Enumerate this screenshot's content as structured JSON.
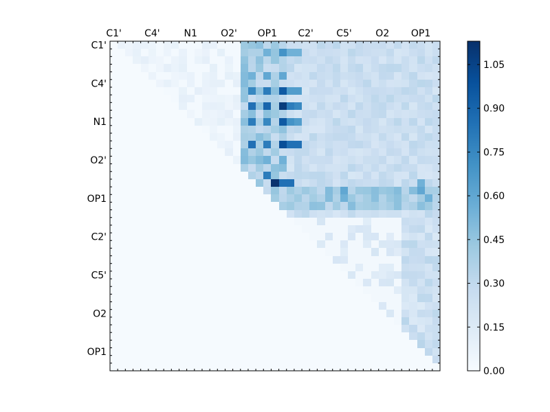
{
  "chart_data": {
    "type": "heatmap",
    "title": "",
    "x_tick_labels": [
      "C1'",
      "C4'",
      "N1",
      "O2'",
      "OP1",
      "C2'",
      "C5'",
      "O2",
      "OP1"
    ],
    "y_tick_labels": [
      "C1'",
      "C4'",
      "N1",
      "O2'",
      "OP1",
      "C2'",
      "C5'",
      "O2",
      "OP1"
    ],
    "n_cells": 43,
    "colormap": "Blues",
    "colorbar": {
      "range": [
        0.0,
        1.13
      ],
      "ticks": [
        0.0,
        0.15,
        0.3,
        0.45,
        0.6,
        0.75,
        0.9,
        1.05
      ],
      "tick_labels": [
        "0.00",
        "0.15",
        "0.30",
        "0.45",
        "0.60",
        "0.75",
        "0.90",
        "1.05"
      ]
    },
    "matrix_note": "upper-triangular values estimated from the image; lower triangle is zero",
    "highlights": [
      {
        "row": 1,
        "col": 20,
        "value": 0.55
      },
      {
        "row": 1,
        "col": 22,
        "value": 0.7
      },
      {
        "row": 1,
        "col": 23,
        "value": 0.55
      },
      {
        "row": 1,
        "col": 24,
        "value": 0.55
      },
      {
        "row": 4,
        "col": 18,
        "value": 0.55
      },
      {
        "row": 4,
        "col": 20,
        "value": 0.6
      },
      {
        "row": 4,
        "col": 22,
        "value": 0.6
      },
      {
        "row": 6,
        "col": 18,
        "value": 0.75
      },
      {
        "row": 6,
        "col": 20,
        "value": 0.8
      },
      {
        "row": 6,
        "col": 22,
        "value": 0.95
      },
      {
        "row": 6,
        "col": 23,
        "value": 0.65
      },
      {
        "row": 6,
        "col": 24,
        "value": 0.65
      },
      {
        "row": 8,
        "col": 18,
        "value": 0.85
      },
      {
        "row": 8,
        "col": 20,
        "value": 0.9
      },
      {
        "row": 8,
        "col": 22,
        "value": 1.08
      },
      {
        "row": 8,
        "col": 23,
        "value": 0.8
      },
      {
        "row": 8,
        "col": 24,
        "value": 0.75
      },
      {
        "row": 10,
        "col": 18,
        "value": 0.8
      },
      {
        "row": 10,
        "col": 20,
        "value": 0.75
      },
      {
        "row": 10,
        "col": 22,
        "value": 0.95
      },
      {
        "row": 10,
        "col": 23,
        "value": 0.7
      },
      {
        "row": 10,
        "col": 24,
        "value": 0.65
      },
      {
        "row": 13,
        "col": 18,
        "value": 0.85
      },
      {
        "row": 13,
        "col": 20,
        "value": 0.8
      },
      {
        "row": 13,
        "col": 22,
        "value": 1.0
      },
      {
        "row": 13,
        "col": 23,
        "value": 0.85
      },
      {
        "row": 13,
        "col": 24,
        "value": 0.85
      },
      {
        "row": 15,
        "col": 20,
        "value": 0.55
      },
      {
        "row": 15,
        "col": 22,
        "value": 0.55
      },
      {
        "row": 17,
        "col": 20,
        "value": 0.8
      },
      {
        "row": 18,
        "col": 21,
        "value": 1.12
      },
      {
        "row": 18,
        "col": 22,
        "value": 0.85
      },
      {
        "row": 18,
        "col": 23,
        "value": 0.85
      },
      {
        "row": 19,
        "col": 28,
        "value": 0.5
      },
      {
        "row": 19,
        "col": 30,
        "value": 0.6
      },
      {
        "row": 20,
        "col": 30,
        "value": 0.55
      },
      {
        "row": 18,
        "col": 40,
        "value": 0.55
      },
      {
        "row": 19,
        "col": 40,
        "value": 0.6
      },
      {
        "row": 20,
        "col": 41,
        "value": 0.55
      }
    ]
  }
}
